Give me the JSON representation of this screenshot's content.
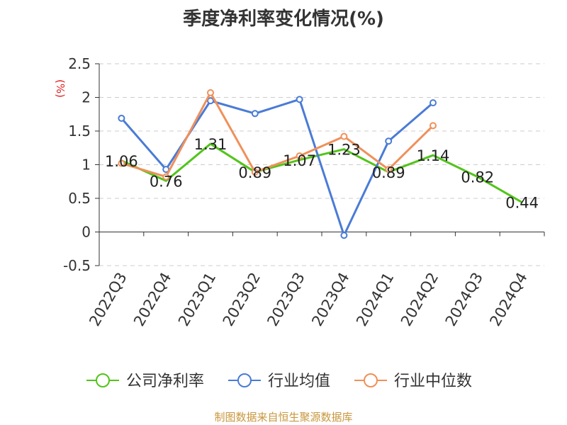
{
  "title": "季度净利率变化情况(%)",
  "source": "制图数据来自恒生聚源数据库",
  "colors": {
    "company": "#52c41a",
    "industry_avg": "#4a7bd6",
    "industry_median": "#f0905a",
    "axis": "#333333",
    "grid": "#cccccc",
    "ylabel": "#e02020",
    "source": "#c8963c"
  },
  "chart_data": {
    "type": "line",
    "title": "季度净利率变化情况(%)",
    "ylabel": "(%)",
    "xlabel": "",
    "ylim": [
      -0.5,
      2.5
    ],
    "yticks": [
      -0.5,
      0,
      0.5,
      1,
      1.5,
      2,
      2.5
    ],
    "ytick_labels": [
      "-0.5",
      "0",
      "0.5",
      "1",
      "1.5",
      "2",
      "2.5"
    ],
    "grid": true,
    "legend_position": "bottom",
    "categories": [
      "2022Q3",
      "2022Q4",
      "2023Q1",
      "2023Q2",
      "2023Q3",
      "2023Q4",
      "2024Q1",
      "2024Q2",
      "2024Q3",
      "2024Q4"
    ],
    "series": [
      {
        "name": "公司净利率",
        "color": "#52c41a",
        "values": [
          1.06,
          0.76,
          1.31,
          0.89,
          1.07,
          1.23,
          0.89,
          1.14,
          0.82,
          0.44
        ],
        "labels": [
          "1.06",
          "0.76",
          "1.31",
          "0.89",
          "1.07",
          "1.23",
          "0.89",
          "1.14",
          "0.82",
          "0.44"
        ],
        "show_markers": false
      },
      {
        "name": "行业均值",
        "color": "#4a7bd6",
        "values": [
          1.69,
          0.93,
          1.95,
          1.76,
          1.97,
          -0.05,
          1.35,
          1.92,
          null,
          null
        ],
        "show_markers": true
      },
      {
        "name": "行业中位数",
        "color": "#f0905a",
        "values": [
          1.02,
          0.82,
          2.07,
          0.89,
          1.13,
          1.42,
          0.93,
          1.58,
          null,
          null
        ],
        "show_markers": true
      }
    ]
  }
}
